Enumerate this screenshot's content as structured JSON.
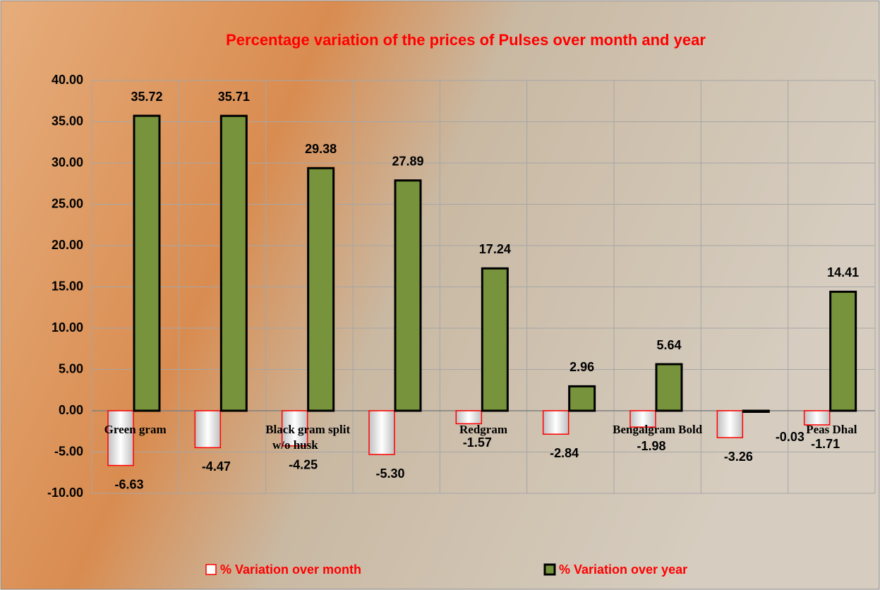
{
  "chart_data": {
    "type": "bar",
    "title": "Percentage variation of the prices of Pulses over month and year",
    "categories": [
      "Green gram",
      null,
      "Black gram  split w/o husk",
      null,
      "Redgram",
      null,
      "Bengalgram Bold",
      null,
      "Peas Dhal"
    ],
    "series": [
      {
        "name": "% Variation over month",
        "color": "#f2f2f2",
        "edge_color": "#ff0000",
        "values": [
          -6.63,
          -4.47,
          -4.25,
          -5.3,
          -1.57,
          -2.84,
          -1.98,
          -3.26,
          -1.71
        ],
        "value_labels": [
          "-6.63",
          "-4.47",
          "-4.25",
          "-5.30",
          "-1.57",
          "-2.84",
          "-1.98",
          "-3.26",
          "-1.71"
        ]
      },
      {
        "name": "% Variation over year",
        "color": "#77933c",
        "edge_color": "#000000",
        "values": [
          35.72,
          35.71,
          29.38,
          27.89,
          17.24,
          2.96,
          5.64,
          -0.03,
          14.41
        ],
        "value_labels": [
          "35.72",
          "35.71",
          "29.38",
          "27.89",
          "17.24",
          "2.96",
          "5.64",
          "-0.03",
          "14.41"
        ]
      }
    ],
    "ylim": [
      -10,
      40
    ],
    "yticks": [
      {
        "value": -10,
        "label": "-10.00"
      },
      {
        "value": -5,
        "label": "-5.00"
      },
      {
        "value": 0,
        "label": "0.00"
      },
      {
        "value": 5,
        "label": "5.00"
      },
      {
        "value": 10,
        "label": "10.00"
      },
      {
        "value": 15,
        "label": "15.00"
      },
      {
        "value": 20,
        "label": "20.00"
      },
      {
        "value": 25,
        "label": "25.00"
      },
      {
        "value": 30,
        "label": "30.00"
      },
      {
        "value": 35,
        "label": "35.00"
      },
      {
        "value": 40,
        "label": "40.00"
      }
    ],
    "grid": true,
    "legend": "bottom"
  }
}
